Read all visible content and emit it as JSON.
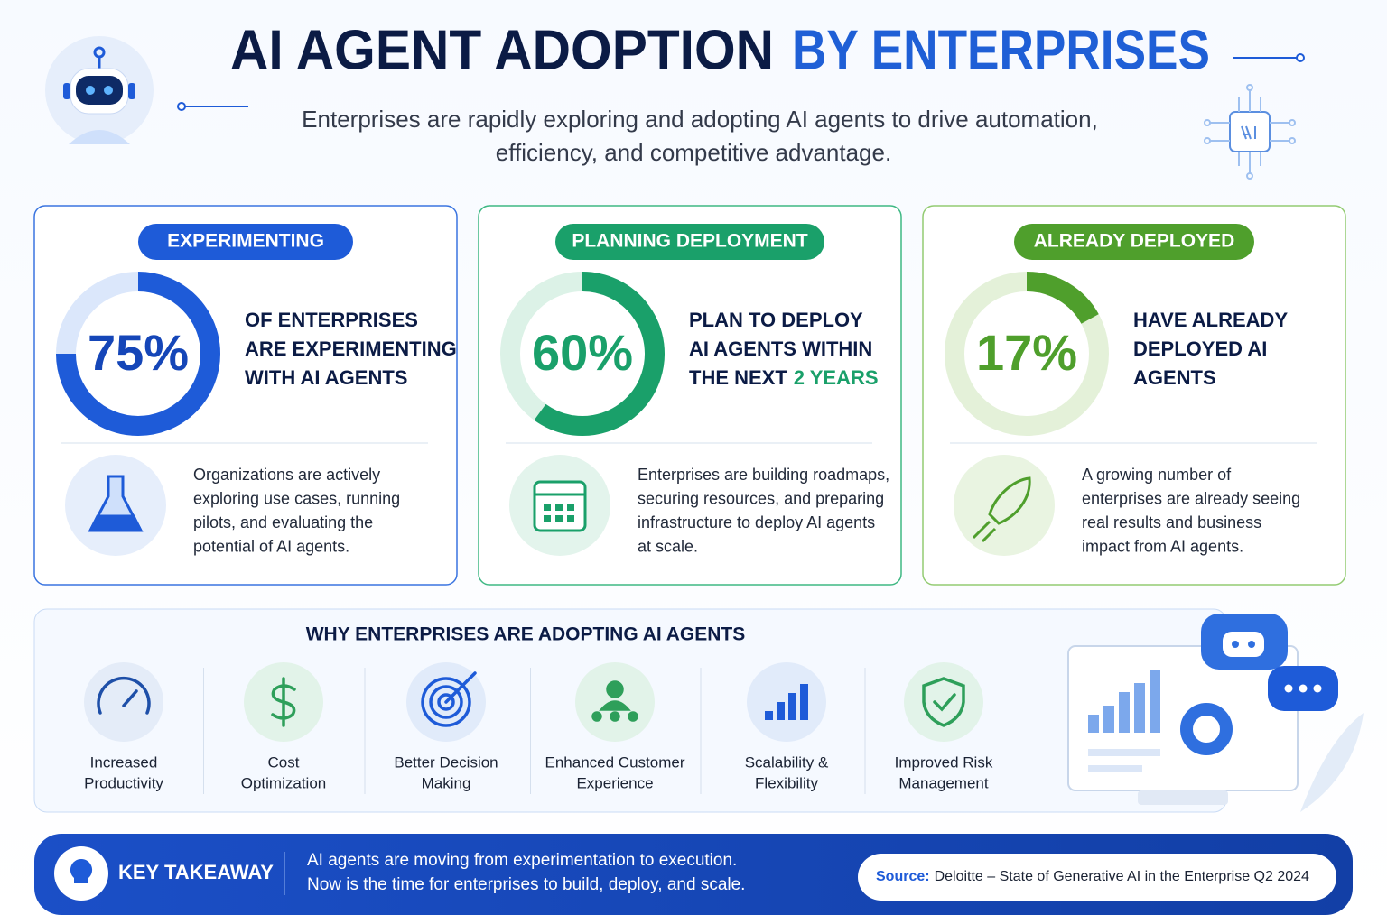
{
  "header": {
    "title_dark": "AI AGENT ADOPTION",
    "title_accent": "BY ENTERPRISES",
    "subtitle": [
      "Enterprises are rapidly exploring and adopting AI agents to drive automation,",
      "efficiency, and competitive advantage."
    ]
  },
  "stages": [
    {
      "label": "EXPERIMENTING",
      "value": 75,
      "value_label": "75%",
      "color": "#1e5bd8",
      "headline": [
        "OF ENTERPRISES",
        "ARE EXPERIMENTING",
        "WITH AI AGENTS"
      ],
      "description": [
        "Organizations are actively",
        "exploring use cases, running",
        "pilots, and evaluating the",
        "potential of AI agents."
      ]
    },
    {
      "label": "PLANNING DEPLOYMENT",
      "value": 60,
      "value_label": "60%",
      "color": "#1aa06a",
      "headline": [
        "PLAN TO DEPLOY",
        "AI AGENTS WITHIN",
        "THE NEXT"
      ],
      "headline_accent": "2 YEARS",
      "description": [
        "Enterprises are building roadmaps,",
        "securing resources, and preparing",
        "infrastructure to deploy AI agents",
        "at scale."
      ]
    },
    {
      "label": "ALREADY DEPLOYED",
      "value": 17,
      "value_label": "17%",
      "color": "#4f9f2c",
      "headline": [
        "HAVE ALREADY",
        "DEPLOYED AI",
        "AGENTS"
      ],
      "description": [
        "A growing number of",
        "enterprises are already seeing",
        "real results and business",
        "impact from AI agents."
      ]
    }
  ],
  "reasons": {
    "title": "WHY ENTERPRISES ARE ADOPTING AI AGENTS",
    "items": [
      [
        "Increased",
        "Productivity"
      ],
      [
        "Cost",
        "Optimization"
      ],
      [
        "Better Decision",
        "Making"
      ],
      [
        "Enhanced Customer",
        "Experience"
      ],
      [
        "Scalability &",
        "Flexibility"
      ],
      [
        "Improved Risk",
        "Management"
      ]
    ]
  },
  "takeaway": {
    "label": "KEY TAKEAWAY",
    "text": [
      "AI agents are moving from experimentation to execution.",
      "Now is the time for enterprises to build, deploy, and scale."
    ]
  },
  "source": {
    "label": "Source:",
    "text": "Deloitte – State of Generative AI in the Enterprise Q2 2024"
  }
}
